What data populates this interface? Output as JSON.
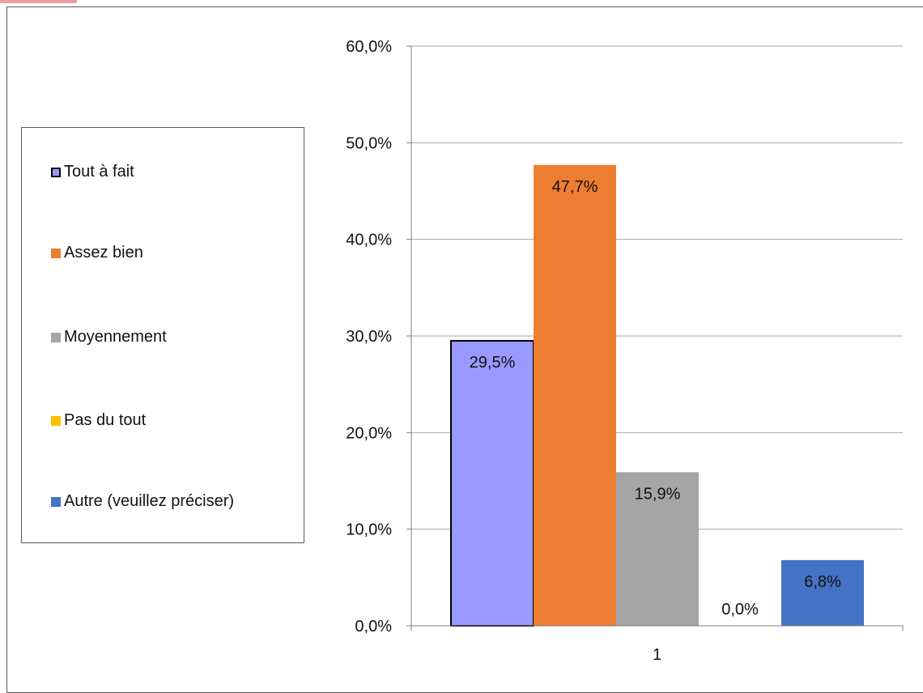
{
  "chart_data": {
    "type": "bar",
    "categories": [
      "1"
    ],
    "series": [
      {
        "name": "Tout à fait",
        "values": [
          29.5
        ],
        "label": "29,5%",
        "color": "#9999ff",
        "outlined": true
      },
      {
        "name": "Assez bien",
        "values": [
          47.7
        ],
        "label": "47,7%",
        "color": "#ed7d31"
      },
      {
        "name": "Moyennement",
        "values": [
          15.9
        ],
        "label": "15,9%",
        "color": "#a5a5a5"
      },
      {
        "name": "Pas du tout",
        "values": [
          0.0
        ],
        "label": "0,0%",
        "color": "#ffc000"
      },
      {
        "name": "Autre (veuillez préciser)",
        "values": [
          6.8
        ],
        "label": "6,8%",
        "color": "#4472c4"
      }
    ],
    "ylim": [
      0,
      60
    ],
    "yticks": [
      0,
      10,
      20,
      30,
      40,
      50,
      60
    ],
    "ytick_labels": [
      "0,0%",
      "10,0%",
      "20,0%",
      "30,0%",
      "40,0%",
      "50,0%",
      "60,0%"
    ],
    "grid": true,
    "legend_position": "left",
    "title": "",
    "xlabel": "",
    "ylabel": ""
  }
}
